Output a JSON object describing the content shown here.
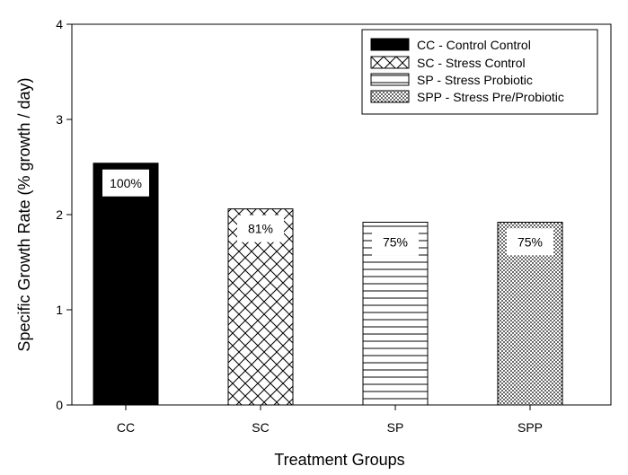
{
  "chart_data": {
    "type": "bar",
    "ylabel": "Specific Growth Rate (% growth / day)",
    "xlabel": "Treatment Groups",
    "ylim": [
      0,
      4
    ],
    "yticks": [
      "0",
      "1",
      "2",
      "3",
      "4"
    ],
    "categories": [
      "CC",
      "SC",
      "SP",
      "SPP"
    ],
    "values": [
      2.54,
      2.06,
      1.92,
      1.92
    ],
    "data_labels": [
      "100%",
      "81%",
      "75%",
      "75%"
    ],
    "patterns": [
      "solid",
      "crosshatch",
      "horizontal",
      "dots"
    ],
    "legend_position": "top-right",
    "legend": [
      "CC - Control Control",
      "SC - Stress Control",
      "SP - Stress Probiotic",
      "SPP - Stress Pre/Probiotic"
    ],
    "grid": false
  }
}
